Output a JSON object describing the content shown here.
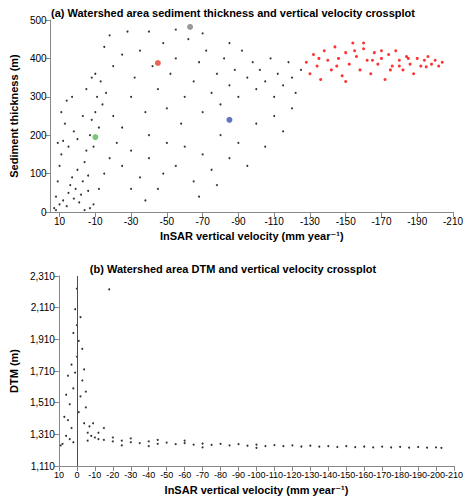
{
  "chart_data": [
    {
      "type": "scatter",
      "title": "(a) Watershed area sediment thickness and vertical velocity crossplot",
      "x_label": "InSAR vertical velocity (mm year⁻¹)",
      "y_label": "Sediment thickness (m)",
      "xlim": [
        15,
        -210
      ],
      "xticks": [
        10,
        -10,
        -30,
        -50,
        -70,
        -90,
        -110,
        -130,
        -150,
        -170,
        -190,
        -210
      ],
      "ylim": [
        0,
        500
      ],
      "yticks": [
        0,
        100,
        200,
        300,
        400,
        500
      ],
      "grid": false,
      "marker": "circle",
      "series": [
        {
          "color": "#000000",
          "x": [
            13,
            12,
            11,
            10,
            9,
            8,
            12,
            10,
            8,
            6,
            5,
            4,
            3,
            2,
            1,
            0,
            -1,
            -2,
            -3,
            -4,
            -5,
            -6,
            -7,
            -8,
            -9,
            -10,
            -11,
            -12,
            -13,
            -14,
            -5,
            -3,
            0,
            2,
            5,
            7,
            -8,
            -10,
            -6,
            -9,
            -12,
            -15,
            -18,
            -20,
            -16,
            -22,
            -25,
            -4,
            -7,
            11,
            9,
            6,
            3,
            -20,
            -25,
            -30,
            -32,
            -35,
            -38,
            -40,
            -42,
            -45,
            -48,
            -50,
            -52,
            -55,
            -58,
            -60,
            -62,
            -65,
            -68,
            -70,
            -72,
            -75,
            -78,
            -80,
            -82,
            -85,
            -88,
            -90,
            -92,
            -95,
            -98,
            -100,
            -102,
            -105,
            -108,
            -110,
            -112,
            -115,
            -118,
            -120,
            -122,
            -125,
            -15,
            -18,
            -28,
            -40,
            -55,
            -70,
            -85,
            -25,
            -30,
            -35,
            -40,
            -45,
            -50,
            -55,
            -60,
            -65,
            -70,
            -75,
            -80,
            -85,
            -90,
            -95,
            -100,
            -105,
            -110,
            -115,
            -120,
            -30,
            -38,
            -48,
            -68,
            -78
          ],
          "values": [
            10,
            40,
            80,
            120,
            150,
            185,
            5,
            20,
            30,
            15,
            50,
            70,
            90,
            35,
            60,
            110,
            25,
            45,
            80,
            130,
            160,
            95,
            200,
            240,
            170,
            260,
            300,
            220,
            340,
            280,
            320,
            250,
            190,
            210,
            170,
            230,
            350,
            360,
            55,
            20,
            60,
            100,
            140,
            250,
            310,
            180,
            220,
            5,
            10,
            180,
            260,
            290,
            300,
            380,
            410,
            300,
            350,
            420,
            260,
            200,
            380,
            320,
            440,
            270,
            360,
            400,
            230,
            300,
            450,
            340,
            390,
            260,
            420,
            310,
            360,
            280,
            400,
            330,
            370,
            300,
            420,
            350,
            390,
            320,
            370,
            340,
            400,
            300,
            360,
            330,
            390,
            350,
            310,
            370,
            430,
            460,
            470,
            470,
            475,
            465,
            440,
            120,
            160,
            90,
            140,
            60,
            180,
            120,
            170,
            80,
            150,
            110,
            200,
            140,
            180,
            120,
            230,
            170,
            250,
            210,
            270,
            60,
            30,
            100,
            40,
            70
          ]
        },
        {
          "color": "#ff0000",
          "x": [
            -128,
            -130,
            -132,
            -134,
            -136,
            -138,
            -140,
            -142,
            -144,
            -146,
            -148,
            -150,
            -152,
            -154,
            -156,
            -158,
            -160,
            -162,
            -164,
            -166,
            -168,
            -170,
            -172,
            -174,
            -176,
            -178,
            -180,
            -182,
            -184,
            -186,
            -188,
            -190,
            -192,
            -194,
            -196,
            -198,
            -200,
            -202,
            -204,
            -135,
            -145,
            -155,
            -165,
            -175,
            -185,
            -195,
            -150,
            -160,
            -170,
            -180
          ],
          "values": [
            390,
            360,
            410,
            380,
            345,
            420,
            395,
            370,
            430,
            400,
            355,
            415,
            385,
            440,
            405,
            370,
            425,
            395,
            360,
            415,
            385,
            400,
            345,
            410,
            380,
            420,
            395,
            370,
            405,
            385,
            360,
            400,
            380,
            395,
            405,
            385,
            395,
            380,
            390,
            400,
            380,
            420,
            395,
            370,
            400,
            378,
            340,
            440,
            420,
            380
          ]
        },
        {
          "color": "#808080",
          "x": [
            -63
          ],
          "values": [
            482
          ]
        },
        {
          "color": "#e03c31",
          "x": [
            -45
          ],
          "values": [
            388
          ]
        },
        {
          "color": "#3c50b4",
          "x": [
            -85
          ],
          "values": [
            240
          ]
        },
        {
          "color": "#5cb85c",
          "x": [
            -10
          ],
          "values": [
            195
          ]
        }
      ]
    },
    {
      "type": "scatter",
      "title": "(b) Watershed area DTM and vertical velocity crossplot",
      "x_label": "InSAR vertical velocity (mm year⁻¹)",
      "y_label": "DTM (m)",
      "xlim": [
        10,
        -210
      ],
      "xticks": [
        10,
        0,
        -10,
        -20,
        -30,
        -40,
        -50,
        -60,
        -70,
        -80,
        -90,
        -100,
        -110,
        -120,
        -130,
        -140,
        -150,
        -160,
        -170,
        -180,
        -190,
        -200,
        -210
      ],
      "ylim": [
        1110,
        2310
      ],
      "yticks": [
        1110,
        1310,
        1510,
        1710,
        1910,
        2110,
        2310
      ],
      "grid": false,
      "marker": "circle",
      "reference_line": {
        "x": 0,
        "color": "#ff0000"
      },
      "series": [
        {
          "color": "#000000",
          "x": [
            8,
            6,
            5,
            4,
            3,
            2,
            1,
            0,
            -1,
            -2,
            -3,
            -4,
            -5,
            -6,
            -1,
            0,
            2,
            -2,
            3,
            -3,
            5,
            -5,
            4,
            7,
            -7,
            1,
            -4,
            6,
            0,
            -8,
            -10,
            -12,
            2,
            -6,
            9,
            -18,
            -15,
            -20,
            -25,
            -30,
            -35,
            -40,
            -45,
            -50,
            -55,
            -60,
            -65,
            -70,
            -75,
            -80,
            -85,
            -90,
            -95,
            -100,
            -105,
            -110,
            -115,
            -120,
            -125,
            -130,
            -135,
            -140,
            -145,
            -150,
            -155,
            -160,
            -165,
            -170,
            -175,
            -180,
            -185,
            -190,
            -195,
            -200,
            -203,
            -20,
            -30,
            -45,
            -60,
            -12,
            -15,
            -9,
            -25,
            -40,
            -70,
            -100
          ],
          "values": [
            1250,
            1300,
            1400,
            1500,
            1350,
            1600,
            1700,
            1800,
            1450,
            1550,
            1650,
            1380,
            1480,
            1320,
            1900,
            2000,
            1950,
            2050,
            1750,
            1850,
            1680,
            1580,
            1280,
            1420,
            1360,
            2100,
            1720,
            1560,
            2230,
            1300,
            1290,
            1280,
            1260,
            1270,
            1240,
            2225,
            1275,
            1265,
            1270,
            1260,
            1255,
            1265,
            1250,
            1258,
            1248,
            1255,
            1245,
            1252,
            1243,
            1250,
            1240,
            1248,
            1238,
            1245,
            1236,
            1242,
            1235,
            1240,
            1233,
            1238,
            1232,
            1236,
            1230,
            1235,
            1229,
            1233,
            1228,
            1232,
            1227,
            1231,
            1226,
            1230,
            1226,
            1228,
            1225,
            1290,
            1285,
            1275,
            1270,
            1320,
            1350,
            1380,
            1240,
            1235,
            1228,
            1225
          ]
        }
      ]
    }
  ]
}
